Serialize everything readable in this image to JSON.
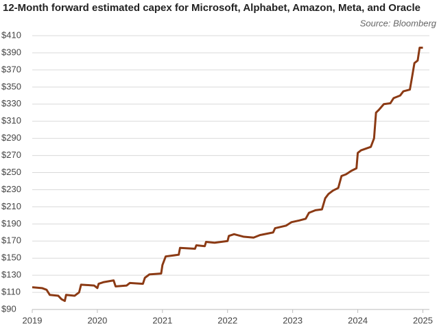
{
  "chart_data": {
    "type": "line",
    "title": "12-Month forward estimated capex for Microsoft, Alphabet, Amazon, Meta, and Oracle",
    "source": "Source: Bloomberg",
    "x": [
      2019.0,
      2019.15,
      2019.22,
      2019.27,
      2019.4,
      2019.45,
      2019.5,
      2019.52,
      2019.65,
      2019.72,
      2019.75,
      2019.95,
      2020.0,
      2020.02,
      2020.1,
      2020.25,
      2020.28,
      2020.45,
      2020.5,
      2020.7,
      2020.73,
      2020.8,
      2020.98,
      2021.0,
      2021.05,
      2021.25,
      2021.27,
      2021.5,
      2021.52,
      2021.65,
      2021.67,
      2021.8,
      2022.0,
      2022.02,
      2022.1,
      2022.25,
      2022.4,
      2022.5,
      2022.7,
      2022.73,
      2022.9,
      2022.98,
      2023.1,
      2023.2,
      2023.25,
      2023.35,
      2023.45,
      2023.5,
      2023.55,
      2023.62,
      2023.7,
      2023.75,
      2023.82,
      2023.9,
      2023.98,
      2024.0,
      2024.05,
      2024.2,
      2024.25,
      2024.28,
      2024.32,
      2024.4,
      2024.5,
      2024.55,
      2024.65,
      2024.7,
      2024.8,
      2024.83,
      2024.87,
      2024.92,
      2024.95,
      2025.0
    ],
    "series": [
      {
        "name": "Capex",
        "color": "#8b3a14",
        "values": [
          116,
          115,
          113,
          107,
          106,
          102,
          100,
          107,
          106,
          110,
          119,
          118,
          115,
          120,
          122,
          124,
          117,
          118,
          121,
          120,
          127,
          131,
          132,
          142,
          152,
          154,
          162,
          161,
          165,
          164,
          169,
          168,
          170,
          176,
          178,
          175,
          174,
          177,
          180,
          185,
          188,
          192,
          194,
          196,
          203,
          206,
          207,
          220,
          225,
          229,
          232,
          246,
          248,
          252,
          255,
          273,
          276,
          280,
          290,
          320,
          323,
          330,
          331,
          337,
          340,
          345,
          347,
          360,
          378,
          381,
          396,
          396
        ]
      }
    ],
    "xlim": [
      2019,
      2025.1
    ],
    "xticks": [
      2019,
      2020,
      2021,
      2022,
      2023,
      2024,
      2025
    ],
    "ylim": [
      90,
      410
    ],
    "yticks": [
      {
        "value": 90,
        "label": "$90"
      },
      {
        "value": 110,
        "label": "$110"
      },
      {
        "value": 130,
        "label": "$130"
      },
      {
        "value": 150,
        "label": "$150"
      },
      {
        "value": 170,
        "label": "$170"
      },
      {
        "value": 190,
        "label": "$190"
      },
      {
        "value": 210,
        "label": "$210"
      },
      {
        "value": 230,
        "label": "$230"
      },
      {
        "value": 250,
        "label": "$250"
      },
      {
        "value": 270,
        "label": "$270"
      },
      {
        "value": 290,
        "label": "$290"
      },
      {
        "value": 310,
        "label": "$310"
      },
      {
        "value": 330,
        "label": "$330"
      },
      {
        "value": 350,
        "label": "$350"
      },
      {
        "value": 370,
        "label": "$370"
      },
      {
        "value": 390,
        "label": "$390"
      },
      {
        "value": 410,
        "label": "$410"
      }
    ],
    "grid": true
  }
}
